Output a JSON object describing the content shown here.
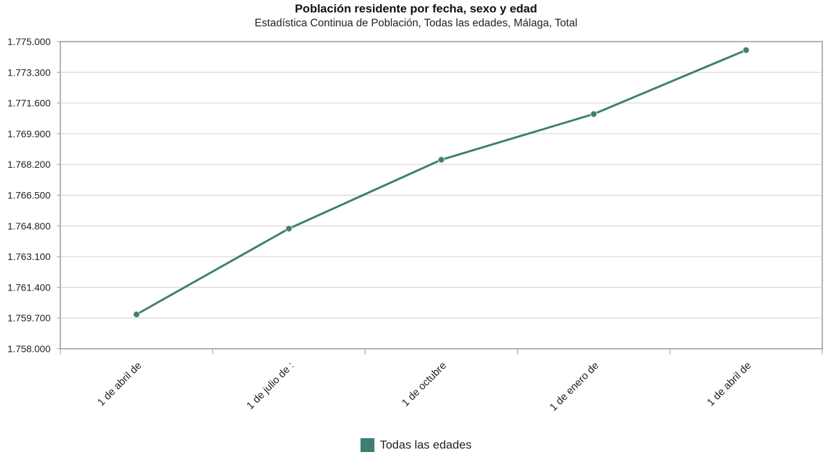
{
  "chart_data": {
    "type": "line",
    "title": "Población residente por fecha, sexo y edad",
    "subtitle": "Estadística Continua de Población, Todas las edades, Málaga, Total",
    "xlabel": "",
    "ylabel": "",
    "categories": [
      "1 de abril de",
      "1 de julio de :",
      "1 de octubre",
      "1 de enero de",
      "1 de abril de"
    ],
    "series": [
      {
        "name": "Todas las edades",
        "color": "#3f7e74",
        "values": [
          1759900,
          1764650,
          1768460,
          1770990,
          1774530
        ]
      }
    ],
    "ylim": [
      1758000,
      1775000
    ],
    "yticks": [
      1758000,
      1759700,
      1761400,
      1763100,
      1764800,
      1766500,
      1768200,
      1769900,
      1771600,
      1773300,
      1775000
    ],
    "ytick_labels": [
      "1.758.000",
      "1.759.700",
      "1.761.400",
      "1.763.100",
      "1.764.800",
      "1.766.500",
      "1.768.200",
      "1.769.900",
      "1.771.600",
      "1.773.300",
      "1.775.000"
    ],
    "grid": true,
    "legend_position": "bottom-center"
  }
}
